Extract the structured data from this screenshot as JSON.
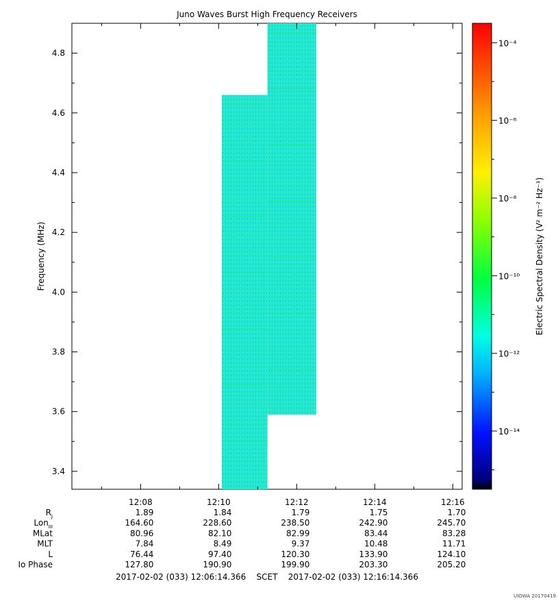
{
  "chart_data": {
    "type": "heatmap",
    "title": "Juno Waves Burst High Frequency Receivers",
    "ylabel": "Frequency (MHz)",
    "ylim": [
      3.34,
      4.9
    ],
    "yticks": [
      "3.4",
      "3.6",
      "3.8",
      "4.0",
      "4.2",
      "4.4",
      "4.6",
      "4.8"
    ],
    "ytick_values": [
      3.4,
      3.6,
      3.8,
      4.0,
      4.2,
      4.4,
      4.6,
      4.8
    ],
    "x_range_minutes": [
      6.2394,
      16.2394
    ],
    "xticks": [
      "12:08",
      "12:10",
      "12:12",
      "12:14",
      "12:16"
    ],
    "xtick_minutes": [
      8,
      10,
      12,
      14,
      16
    ],
    "blocks": [
      {
        "t_start": 10.08,
        "t_end": 11.25,
        "f_min": 3.34,
        "f_max": 4.66
      },
      {
        "t_start": 11.25,
        "t_end": 12.5,
        "f_min": 3.59,
        "f_max": 4.9
      }
    ],
    "colorbar": {
      "label": "Electric Spectral Density (V² m⁻² Hz⁻¹)",
      "log_range": [
        -15.5,
        -3.5
      ],
      "tick_labels": [
        "10⁻¹⁴",
        "10⁻¹²",
        "10⁻¹⁰",
        "10⁻⁸",
        "10⁻⁶",
        "10⁻⁴"
      ],
      "tick_exponents": [
        -14,
        -12,
        -10,
        -8,
        -6,
        -4
      ]
    },
    "ephemeris": {
      "labels": [
        "R",
        "Lon",
        "MLat",
        "MLT",
        "L",
        "Io Phase"
      ],
      "subscripts": [
        "J",
        "III",
        "",
        "",
        "",
        ""
      ],
      "rows": [
        [
          "1.89",
          "1.84",
          "1.79",
          "1.75",
          "1.70"
        ],
        [
          "164.60",
          "228.60",
          "238.50",
          "242.90",
          "245.70"
        ],
        [
          "80.96",
          "82.10",
          "82.99",
          "83.44",
          "83.28"
        ],
        [
          "7.84",
          "8.49",
          "9.37",
          "10.48",
          "11.71"
        ],
        [
          "76.44",
          "97.40",
          "120.30",
          "133.90",
          "124.10"
        ],
        [
          "127.80",
          "190.90",
          "199.90",
          "203.30",
          "205.20"
        ]
      ]
    },
    "time_range_text": "2017-02-02 (033) 12:06:14.366    SCET    2017-02-02 (033) 12:16:14.366",
    "footer": "UIOWA 20170419"
  }
}
